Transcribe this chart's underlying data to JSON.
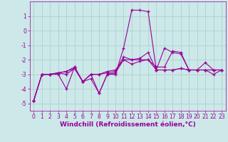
{
  "xlabel": "Windchill (Refroidissement éolien,°C)",
  "background_color": "#cce8e8",
  "line_color": "#990099",
  "grid_color": "#aacccc",
  "x_values": [
    0,
    1,
    2,
    3,
    4,
    5,
    6,
    7,
    8,
    9,
    10,
    11,
    12,
    13,
    14,
    15,
    16,
    17,
    18,
    19,
    20,
    21,
    22,
    23
  ],
  "series": [
    [
      -4.8,
      -3.0,
      -3.0,
      -2.9,
      -2.8,
      -2.6,
      -3.5,
      -3.0,
      -4.3,
      -3.0,
      -3.0,
      -1.2,
      1.4,
      1.4,
      1.3,
      -2.7,
      -1.2,
      -1.5,
      -1.6,
      -2.7,
      -2.7,
      -2.7,
      -3.0,
      -2.7
    ],
    [
      -4.8,
      -3.0,
      -3.0,
      -2.9,
      -3.0,
      -2.6,
      -3.5,
      -3.0,
      -3.0,
      -2.9,
      -2.8,
      -1.8,
      -2.0,
      -1.9,
      -1.5,
      -2.7,
      -2.7,
      -2.7,
      -2.6,
      -2.7,
      -2.7,
      -2.7,
      -2.7,
      -2.7
    ],
    [
      -4.8,
      -3.0,
      -3.0,
      -2.9,
      -2.8,
      -2.5,
      -3.5,
      -3.0,
      -3.0,
      -2.8,
      -2.7,
      -2.0,
      -2.3,
      -2.1,
      -2.0,
      -2.7,
      -2.7,
      -2.7,
      -2.6,
      -2.7,
      -2.7,
      -2.7,
      -2.7,
      -2.7
    ],
    [
      -4.8,
      -3.0,
      -3.0,
      -3.0,
      -4.0,
      -2.5,
      -3.5,
      -3.3,
      -4.3,
      -3.0,
      -2.9,
      -2.0,
      -2.0,
      -2.0,
      -2.0,
      -2.5,
      -2.5,
      -1.4,
      -1.5,
      -2.7,
      -2.7,
      -2.2,
      -2.7,
      -2.7
    ]
  ],
  "ylim": [
    -5.5,
    2.0
  ],
  "xlim": [
    -0.5,
    23.5
  ],
  "yticks": [
    -5,
    -4,
    -3,
    -2,
    -1,
    0,
    1
  ],
  "xticks": [
    0,
    1,
    2,
    3,
    4,
    5,
    6,
    7,
    8,
    9,
    10,
    11,
    12,
    13,
    14,
    15,
    16,
    17,
    18,
    19,
    20,
    21,
    22,
    23
  ],
  "tick_fontsize": 5.5,
  "xlabel_fontsize": 6.5
}
